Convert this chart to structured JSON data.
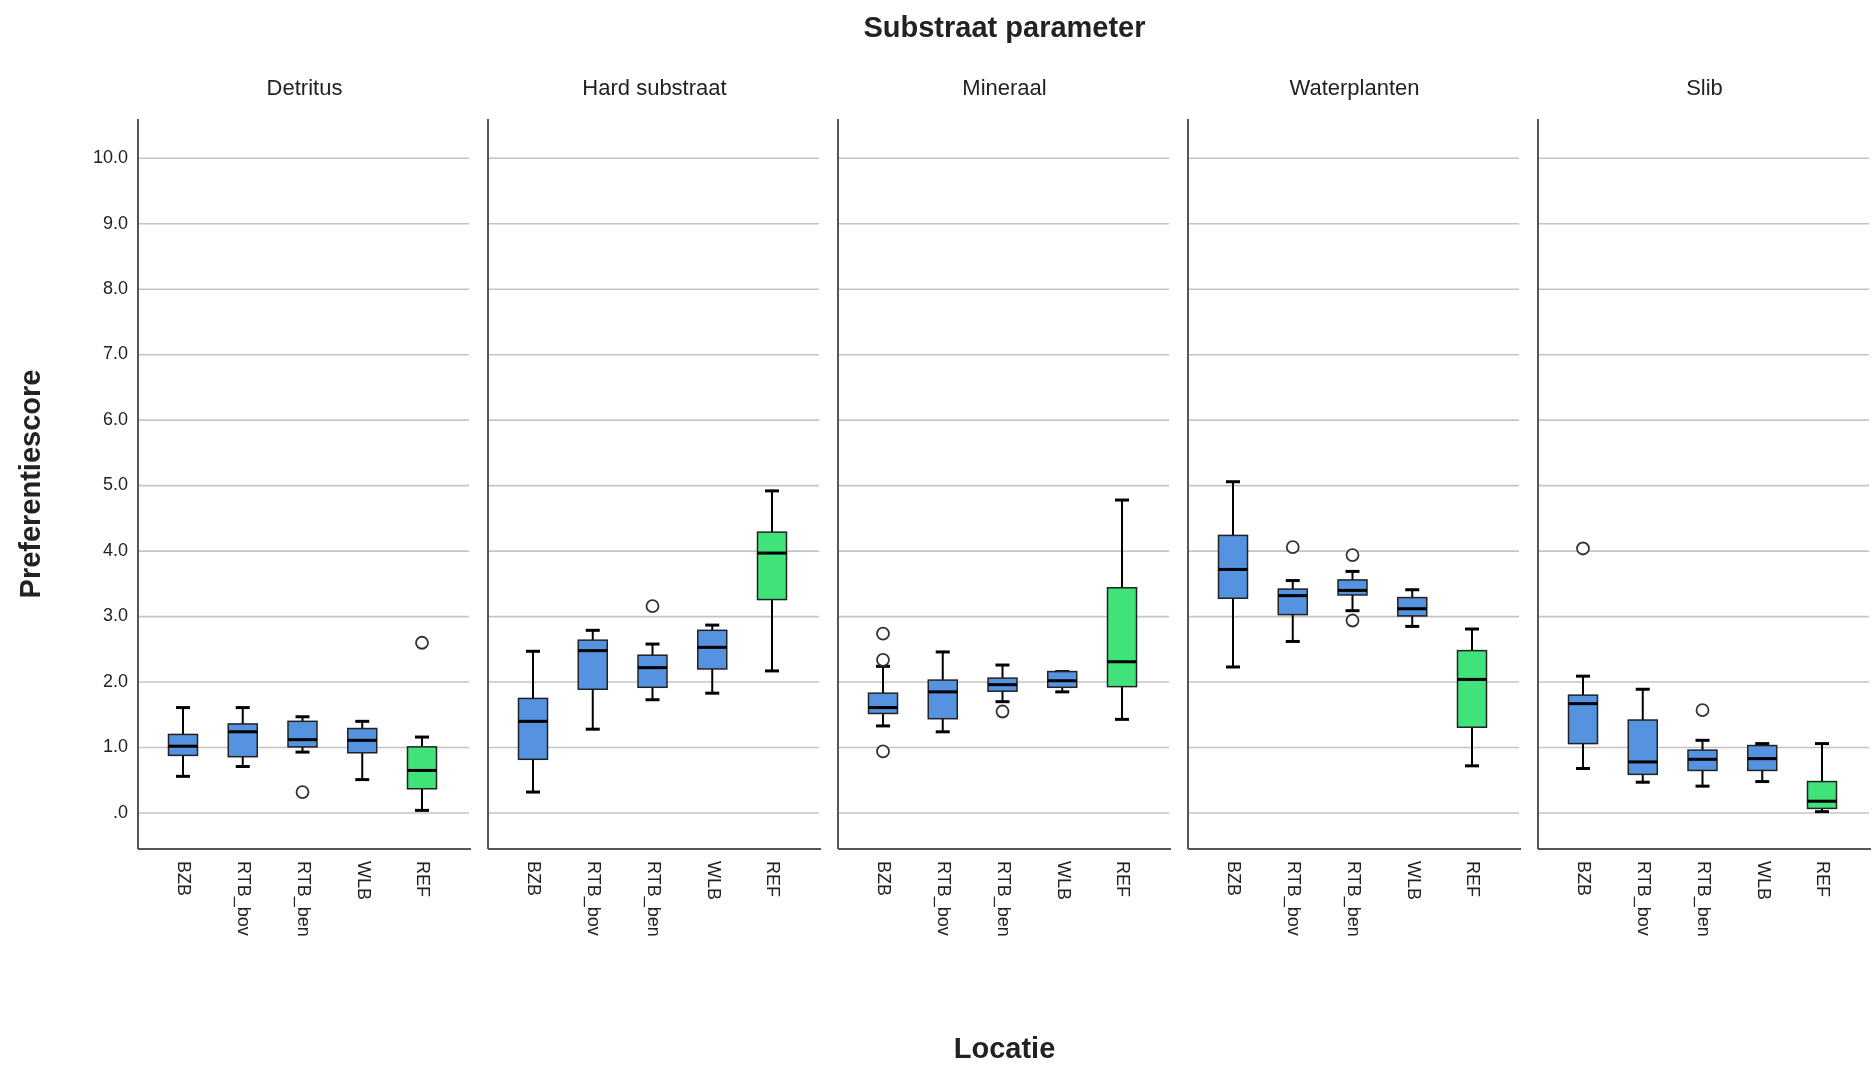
{
  "chart_data": [
    {
      "type": "box",
      "title": "Detritus",
      "ylabel": "Preferentiescore",
      "categories": [
        "BZB",
        "RTB_bov",
        "RTB_ben",
        "WLB",
        "REF"
      ],
      "colors": [
        "#5592e0",
        "#5592e0",
        "#5592e0",
        "#5592e0",
        "#40e27a"
      ],
      "grid": "y",
      "ylim": [
        -0.55,
        10.6
      ],
      "yticks": [
        {
          "value": 0,
          "label": ".0"
        },
        {
          "value": 1,
          "label": "1.0"
        },
        {
          "value": 2,
          "label": "2.0"
        },
        {
          "value": 3,
          "label": "3.0"
        },
        {
          "value": 4,
          "label": "4.0"
        },
        {
          "value": 5,
          "label": "5.0"
        },
        {
          "value": 6,
          "label": "6.0"
        },
        {
          "value": 7,
          "label": "7.0"
        },
        {
          "value": 8,
          "label": "8.0"
        },
        {
          "value": 9,
          "label": "9.0"
        },
        {
          "value": 10,
          "label": "10.0"
        }
      ],
      "boxes": [
        {
          "low": 0.56,
          "q1": 0.88,
          "median": 1.02,
          "q3": 1.2,
          "high": 1.61
        },
        {
          "low": 0.71,
          "q1": 0.86,
          "median": 1.24,
          "q3": 1.36,
          "high": 1.61
        },
        {
          "low": 0.93,
          "q1": 1.01,
          "median": 1.12,
          "q3": 1.4,
          "high": 1.47,
          "outliers": [
            0.32
          ]
        },
        {
          "low": 0.51,
          "q1": 0.92,
          "median": 1.11,
          "q3": 1.29,
          "high": 1.4
        },
        {
          "low": 0.04,
          "q1": 0.37,
          "median": 0.65,
          "q3": 1.01,
          "high": 1.16,
          "outliers": [
            2.6
          ]
        }
      ]
    },
    {
      "type": "box",
      "title": "Hard substraat",
      "categories": [
        "BZB",
        "RTB_bov",
        "RTB_ben",
        "WLB",
        "REF"
      ],
      "colors": [
        "#5592e0",
        "#5592e0",
        "#5592e0",
        "#5592e0",
        "#40e27a"
      ],
      "grid": "y",
      "tick_labels": "x",
      "ylim": [
        -0.55,
        10.6
      ],
      "yticks": [
        0,
        1,
        2,
        3,
        4,
        5,
        6,
        7,
        8,
        9,
        10
      ],
      "boxes": [
        {
          "low": 0.32,
          "q1": 0.82,
          "median": 1.4,
          "q3": 1.75,
          "high": 2.47
        },
        {
          "low": 1.28,
          "q1": 1.89,
          "median": 2.48,
          "q3": 2.64,
          "high": 2.79
        },
        {
          "low": 1.73,
          "q1": 1.92,
          "median": 2.22,
          "q3": 2.41,
          "high": 2.58,
          "outliers": [
            3.16
          ]
        },
        {
          "low": 1.83,
          "q1": 2.2,
          "median": 2.53,
          "q3": 2.79,
          "high": 2.87
        },
        {
          "low": 2.17,
          "q1": 3.26,
          "median": 3.97,
          "q3": 4.29,
          "high": 4.92
        }
      ]
    },
    {
      "type": "box",
      "title": "Mineraal",
      "xlabel": "Locatie",
      "annotations": [
        "Substraat parameter"
      ],
      "categories": [
        "BZB",
        "RTB_bov",
        "RTB_ben",
        "WLB",
        "REF"
      ],
      "colors": [
        "#5592e0",
        "#5592e0",
        "#5592e0",
        "#5592e0",
        "#40e27a"
      ],
      "grid": "y",
      "tick_labels": "x",
      "ylim": [
        -0.55,
        10.6
      ],
      "yticks": [
        0,
        1,
        2,
        3,
        4,
        5,
        6,
        7,
        8,
        9,
        10
      ],
      "boxes": [
        {
          "low": 1.33,
          "q1": 1.52,
          "median": 1.61,
          "q3": 1.83,
          "high": 2.24,
          "outliers": [
            2.74,
            2.34,
            0.94
          ]
        },
        {
          "low": 1.24,
          "q1": 1.44,
          "median": 1.85,
          "q3": 2.03,
          "high": 2.46
        },
        {
          "low": 1.7,
          "q1": 1.86,
          "median": 1.96,
          "q3": 2.06,
          "high": 2.26,
          "outliers": [
            1.55
          ]
        },
        {
          "low": 1.85,
          "q1": 1.92,
          "median": 2.02,
          "q3": 2.16,
          "high": 2.16
        },
        {
          "low": 1.43,
          "q1": 1.93,
          "median": 2.31,
          "q3": 3.44,
          "high": 4.78
        }
      ]
    },
    {
      "type": "box",
      "title": "Waterplanten",
      "categories": [
        "BZB",
        "RTB_bov",
        "RTB_ben",
        "WLB",
        "REF"
      ],
      "colors": [
        "#5592e0",
        "#5592e0",
        "#5592e0",
        "#5592e0",
        "#40e27a"
      ],
      "grid": "y",
      "tick_labels": "x",
      "ylim": [
        -0.55,
        10.6
      ],
      "yticks": [
        0,
        1,
        2,
        3,
        4,
        5,
        6,
        7,
        8,
        9,
        10
      ],
      "boxes": [
        {
          "low": 2.23,
          "q1": 3.28,
          "median": 3.72,
          "q3": 4.24,
          "high": 5.06
        },
        {
          "low": 2.62,
          "q1": 3.03,
          "median": 3.32,
          "q3": 3.42,
          "high": 3.55,
          "outliers": [
            4.06
          ]
        },
        {
          "low": 3.09,
          "q1": 3.33,
          "median": 3.4,
          "q3": 3.56,
          "high": 3.69,
          "outliers": [
            3.94,
            2.94
          ]
        },
        {
          "low": 2.85,
          "q1": 3.01,
          "median": 3.12,
          "q3": 3.29,
          "high": 3.41
        },
        {
          "low": 0.72,
          "q1": 1.31,
          "median": 2.04,
          "q3": 2.48,
          "high": 2.81
        }
      ]
    },
    {
      "type": "box",
      "title": "Slib",
      "categories": [
        "BZB",
        "RTB_bov",
        "RTB_ben",
        "WLB",
        "REF"
      ],
      "colors": [
        "#5592e0",
        "#5592e0",
        "#5592e0",
        "#5592e0",
        "#40e27a"
      ],
      "grid": "y",
      "tick_labels": "x",
      "ylim": [
        -0.55,
        10.6
      ],
      "yticks": [
        0,
        1,
        2,
        3,
        4,
        5,
        6,
        7,
        8,
        9,
        10
      ],
      "boxes": [
        {
          "low": 0.68,
          "q1": 1.06,
          "median": 1.67,
          "q3": 1.8,
          "high": 2.09,
          "outliers": [
            4.04
          ]
        },
        {
          "low": 0.47,
          "q1": 0.59,
          "median": 0.78,
          "q3": 1.42,
          "high": 1.89
        },
        {
          "low": 0.41,
          "q1": 0.65,
          "median": 0.82,
          "q3": 0.96,
          "high": 1.11,
          "outliers": [
            1.57
          ]
        },
        {
          "low": 0.48,
          "q1": 0.65,
          "median": 0.83,
          "q3": 1.03,
          "high": 1.06
        },
        {
          "low": 0.02,
          "q1": 0.07,
          "median": 0.18,
          "q3": 0.48,
          "high": 1.06
        }
      ]
    }
  ]
}
